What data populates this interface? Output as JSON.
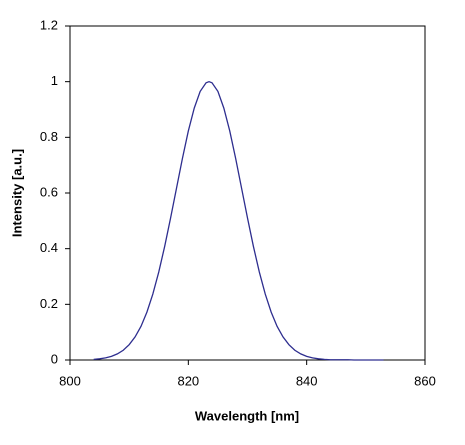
{
  "chart_data": {
    "type": "line",
    "xlabel": "Wavelength [nm]",
    "ylabel": "Intensity [a.u.]",
    "x": [
      804,
      805,
      806,
      807,
      808,
      809,
      810,
      811,
      812,
      813,
      814,
      815,
      816,
      817,
      818,
      819,
      820,
      821,
      822,
      823,
      823.5,
      824,
      825,
      826,
      827,
      828,
      829,
      830,
      831,
      832,
      833,
      834,
      835,
      836,
      837,
      838,
      839,
      840,
      841,
      842,
      843,
      844,
      845,
      846,
      847,
      848,
      849,
      850,
      851,
      852,
      853
    ],
    "series": [
      {
        "name": "Intensity",
        "color": "#2e2e8f",
        "values": [
          0.0023,
          0.0043,
          0.0076,
          0.013,
          0.022,
          0.035,
          0.055,
          0.083,
          0.121,
          0.172,
          0.237,
          0.316,
          0.408,
          0.51,
          0.617,
          0.724,
          0.823,
          0.905,
          0.965,
          0.996,
          1,
          0.996,
          0.965,
          0.905,
          0.823,
          0.724,
          0.617,
          0.51,
          0.408,
          0.316,
          0.237,
          0.172,
          0.121,
          0.083,
          0.055,
          0.035,
          0.022,
          0.013,
          0.0076,
          0.0043,
          0.0023,
          0.001,
          0.001,
          0.001,
          0.001,
          0,
          0,
          0,
          0,
          0,
          0
        ]
      }
    ],
    "xlim": [
      800,
      860
    ],
    "xticks": [
      800,
      820,
      840,
      860
    ],
    "ylim": [
      0,
      1.2
    ],
    "yticks": [
      0,
      0.2,
      0.4,
      0.6,
      0.8,
      1,
      1.2
    ]
  }
}
